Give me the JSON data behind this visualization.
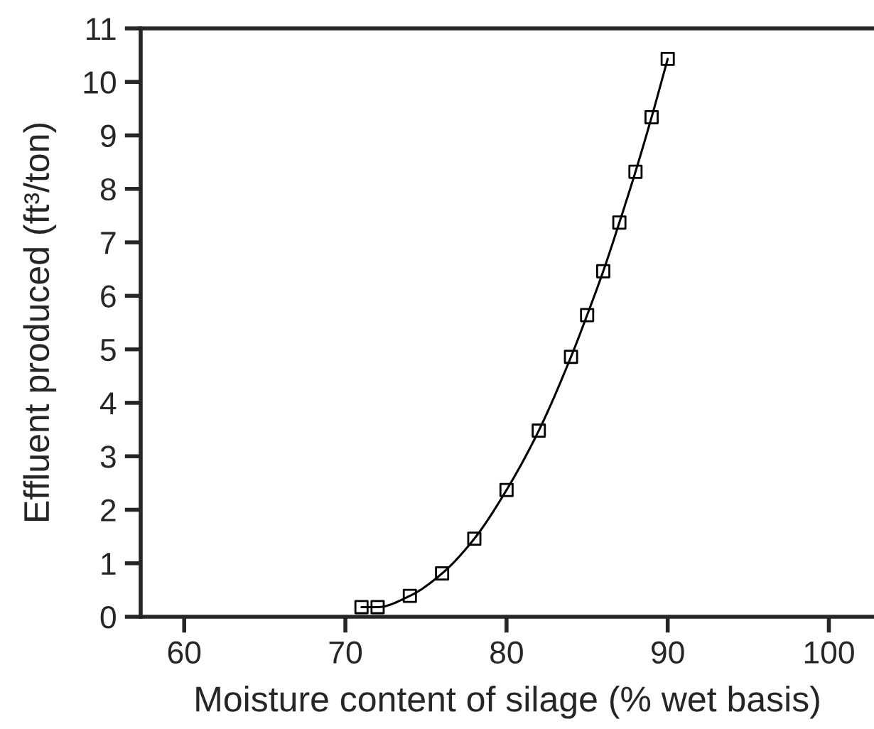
{
  "chart_data": {
    "type": "line",
    "xlabel": "Moisture content of silage (% wet basis)",
    "ylabel": "Effluent produced (ft³/ton)",
    "x": [
      71,
      72,
      74,
      76,
      78,
      80,
      82,
      84,
      85,
      86,
      87,
      88,
      89,
      90
    ],
    "series": [
      {
        "color": "#000000",
        "values": [
          0.18,
          0.18,
          0.39,
          0.81,
          1.46,
          2.37,
          3.48,
          4.86,
          5.64,
          6.46,
          7.37,
          8.32,
          9.34,
          10.43
        ]
      }
    ],
    "marker": "square",
    "line_style": "solid",
    "grid": false,
    "legend": false,
    "xlim": [
      57.3,
      102.8
    ],
    "ylim": [
      0,
      11
    ],
    "xticks": [
      60,
      70,
      80,
      90,
      100
    ],
    "yticks": [
      0,
      1,
      2,
      3,
      4,
      5,
      6,
      7,
      8,
      9,
      10,
      11
    ]
  }
}
